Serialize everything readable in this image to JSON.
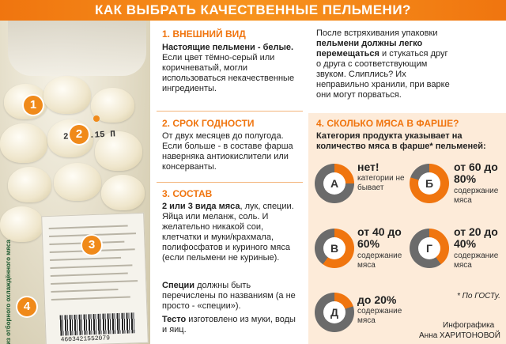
{
  "header": {
    "title": "КАК ВЫБРАТЬ КАЧЕСТВЕННЫЕ ПЕЛЬМЕНИ?"
  },
  "photo": {
    "markers": [
      "1",
      "2",
      "3",
      "4"
    ],
    "date_stamp": "20.01.15 П",
    "barcode_number": "4603421552079",
    "vertical_label": "из отборного охлаждённого мяса",
    "colors": {
      "accent": "#f0750f"
    }
  },
  "section1": {
    "title": "1. ВНЕШНИЙ ВИД",
    "lead": "Настоящие пельмени - белые.",
    "body": "Если цвет тёмно-серый или коричневатый, могли использоваться некачественные ингредиенты."
  },
  "section_shake": {
    "intro": "После встряхивания упаковки",
    "lead": "пельмени должны легко перемещаться",
    "body": "и стукаться друг о друга с соответствующим звуком. Слиплись? Их неправильно хранили, при варке они могут порваться."
  },
  "section2": {
    "title": "2. СРОК ГОДНОСТИ",
    "body": "От двух месяцев до полугода. Если больше - в составе фарша наверняка антиокислители или консерванты."
  },
  "section3": {
    "title": "3. СОСТАВ",
    "lead1": "2 или 3 вида мяса",
    "body1": ", лук, специи. Яйца или меланж, соль. И желательно никакой сои, клетчатки и муки/крахмала, полифосфатов и куриного мяса (если пельмени не куриные).",
    "lead2": "Специи",
    "body2": "должны быть перечислены по названиям (а не просто - «специи»).",
    "lead3": "Тесто",
    "body3": "изготовлено из муки, воды и яиц."
  },
  "section4": {
    "title": "4. СКОЛЬКО МЯСА В ФАРШЕ?",
    "subtitle": "Категория продукта указывает на количество мяса в фарше* пельменей:",
    "categories": [
      {
        "letter": "А",
        "big": "нет!",
        "small": "категории не бывает",
        "fraction": 0.25
      },
      {
        "letter": "Б",
        "big": "от 60 до 80%",
        "small": "содержание мяса",
        "fraction": 0.8
      },
      {
        "letter": "В",
        "big": "от 40 до 60%",
        "small": "содержание мяса",
        "fraction": 0.6
      },
      {
        "letter": "Г",
        "big": "от 20 до 40%",
        "small": "содержание мяса",
        "fraction": 0.4
      },
      {
        "letter": "Д",
        "big": "до 20%",
        "small": "содержание мяса",
        "fraction": 0.2
      }
    ],
    "footnote": "* По ГОСТу.",
    "credit_line1": "Инфографика",
    "credit_line2": "Анна ХАРИТОНОВОЙ",
    "colors": {
      "filled": "#f0750f",
      "empty": "#6b6b6b"
    }
  }
}
